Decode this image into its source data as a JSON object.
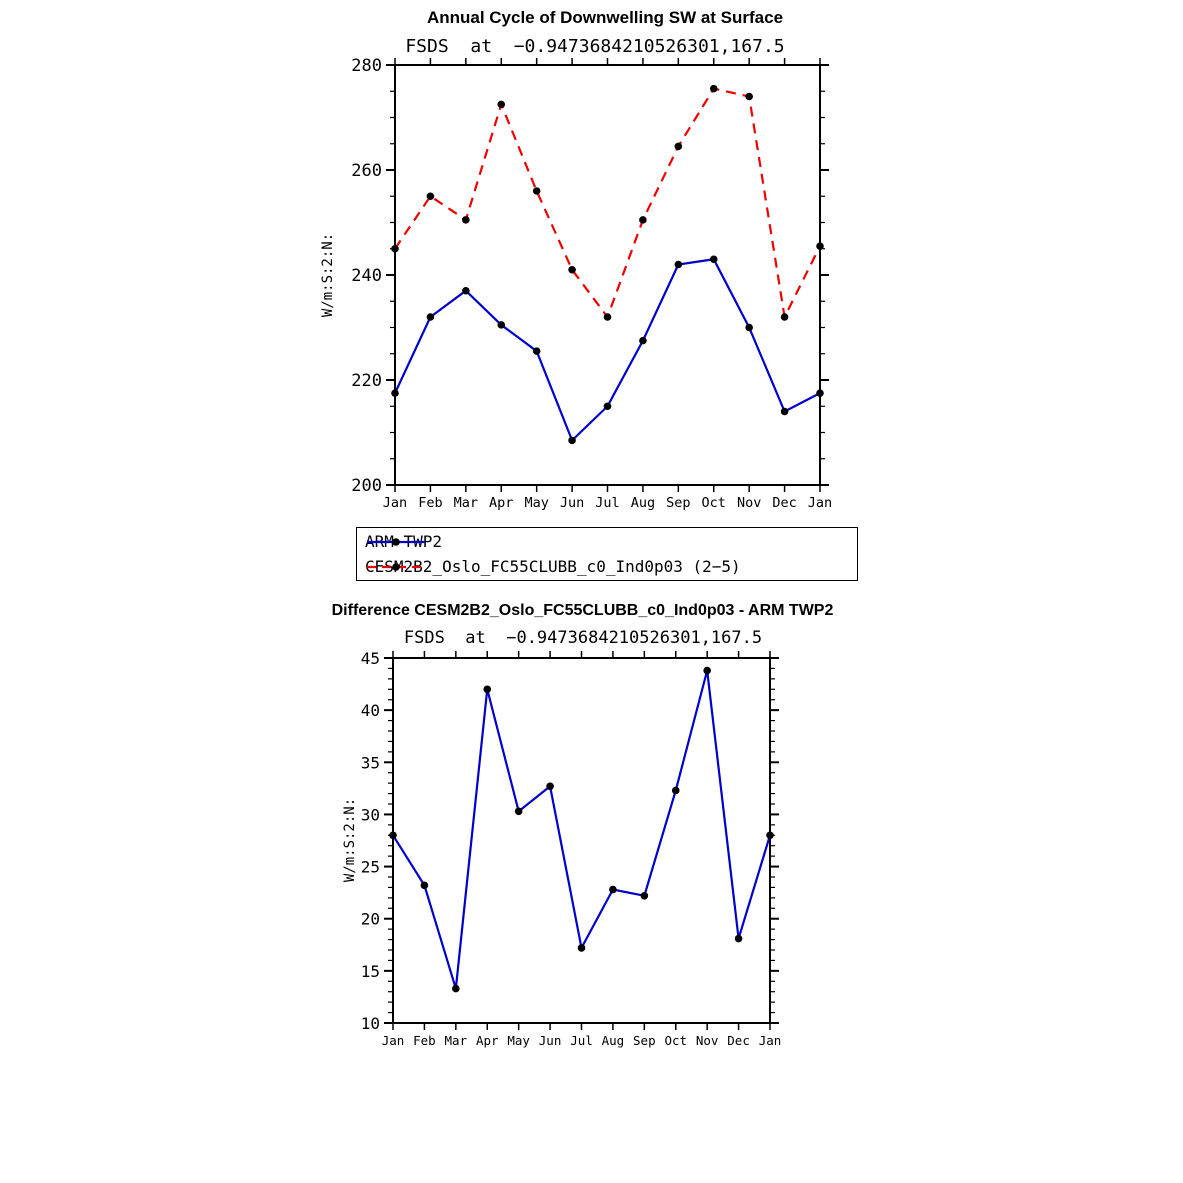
{
  "page": {
    "background": "#ffffff"
  },
  "chart_data": [
    {
      "type": "line",
      "title": "Annual Cycle of Downwelling SW at Surface",
      "subtitle": "FSDS  at  −0.9473684210526301,167.5",
      "ylabel": "W/m:S:2:N:",
      "categories": [
        "Jan",
        "Feb",
        "Mar",
        "Apr",
        "May",
        "Jun",
        "Jul",
        "Aug",
        "Sep",
        "Oct",
        "Nov",
        "Dec",
        "Jan"
      ],
      "ylim": [
        200,
        280
      ],
      "ytick_step": 20,
      "yminor_step": 5,
      "grid": false,
      "legend_position": "below",
      "series": [
        {
          "name": "ARM TWP2",
          "color": "#0000cd",
          "dash": "solid",
          "marker_color": "#000000",
          "values": [
            217.5,
            232,
            237,
            230.5,
            225.5,
            208.5,
            215,
            227.5,
            242,
            243,
            230,
            214,
            217.5
          ]
        },
        {
          "name": "CESM2B2_Oslo_FC55CLUBB_c0_Ind0p03 (2−5)",
          "color": "#ee0000",
          "dash": "dashed",
          "marker_color": "#000000",
          "values": [
            245,
            255,
            250.5,
            272.5,
            256,
            241,
            232,
            250.5,
            264.5,
            275.5,
            274,
            232,
            245.5
          ]
        }
      ]
    },
    {
      "type": "line",
      "title": "Difference CESM2B2_Oslo_FC55CLUBB_c0_Ind0p03 - ARM TWP2",
      "subtitle": "FSDS  at  −0.9473684210526301,167.5",
      "ylabel": "W/m:S:2:N:",
      "categories": [
        "Jan",
        "Feb",
        "Mar",
        "Apr",
        "May",
        "Jun",
        "Jul",
        "Aug",
        "Sep",
        "Oct",
        "Nov",
        "Dec",
        "Jan"
      ],
      "ylim": [
        10,
        45
      ],
      "ytick_step": 5,
      "yminor_step": 1,
      "grid": false,
      "series": [
        {
          "name": "CESM2B2_Oslo_FC55CLUBB_c0_Ind0p03 - ARM TWP2",
          "color": "#0000cd",
          "dash": "solid",
          "marker_color": "#000000",
          "values": [
            28,
            23.2,
            13.3,
            42,
            30.3,
            32.7,
            17.2,
            22.8,
            22.2,
            32.3,
            43.8,
            18.1,
            28
          ]
        }
      ]
    }
  ],
  "axis_style": {
    "line_color": "#000000",
    "text_color": "#000000"
  }
}
